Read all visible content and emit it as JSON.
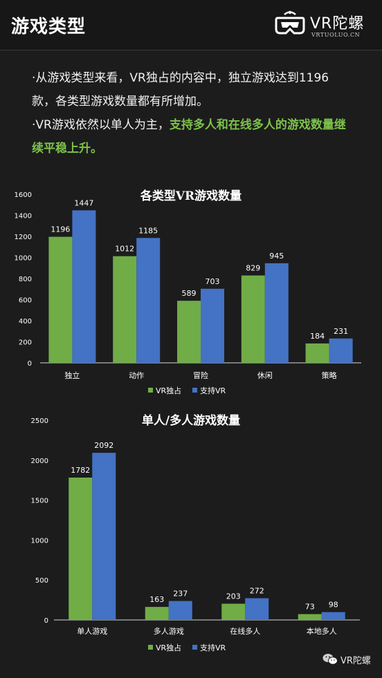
{
  "header": {
    "title": "游戏类型",
    "logo_text": "VR陀螺",
    "logo_sub": "VRTUOLUO.CN"
  },
  "intro": {
    "line1": "·从游戏类型来看，VR独占的内容中，独立游戏达到1196款，各类型游戏数量都有所增加。",
    "line2_plain": "·VR游戏依然以单人为主，",
    "line2_highlight": "支持多人和在线多人的游戏数量继续平稳上升。"
  },
  "colors": {
    "vr_exclusive": "#70ad47",
    "vr_support": "#4472c4",
    "highlight": "#7cc24a"
  },
  "chart_data": [
    {
      "type": "bar",
      "title": "各类型VR游戏数量",
      "categories": [
        "独立",
        "动作",
        "冒险",
        "休闲",
        "策略"
      ],
      "series": [
        {
          "name": "VR独占",
          "values": [
            1196,
            1012,
            589,
            829,
            184
          ]
        },
        {
          "name": "支持VR",
          "values": [
            1447,
            1185,
            703,
            945,
            231
          ]
        }
      ],
      "ylim": [
        0,
        1600
      ],
      "yticks": [
        0,
        200,
        400,
        600,
        800,
        1000,
        1200,
        1400,
        1600
      ],
      "legend": "bottom",
      "grid": false
    },
    {
      "type": "bar",
      "title": "单人/多人游戏数量",
      "categories": [
        "单人游戏",
        "多人游戏",
        "在线多人",
        "本地多人"
      ],
      "series": [
        {
          "name": "VR独占",
          "values": [
            1782,
            163,
            203,
            73
          ]
        },
        {
          "name": "支持VR",
          "values": [
            2092,
            237,
            272,
            98
          ]
        }
      ],
      "ylim": [
        0,
        2500
      ],
      "yticks": [
        0,
        500,
        1000,
        1500,
        2000,
        2500
      ],
      "legend": "bottom",
      "grid": false
    }
  ],
  "footer": {
    "text": "VR陀螺"
  }
}
